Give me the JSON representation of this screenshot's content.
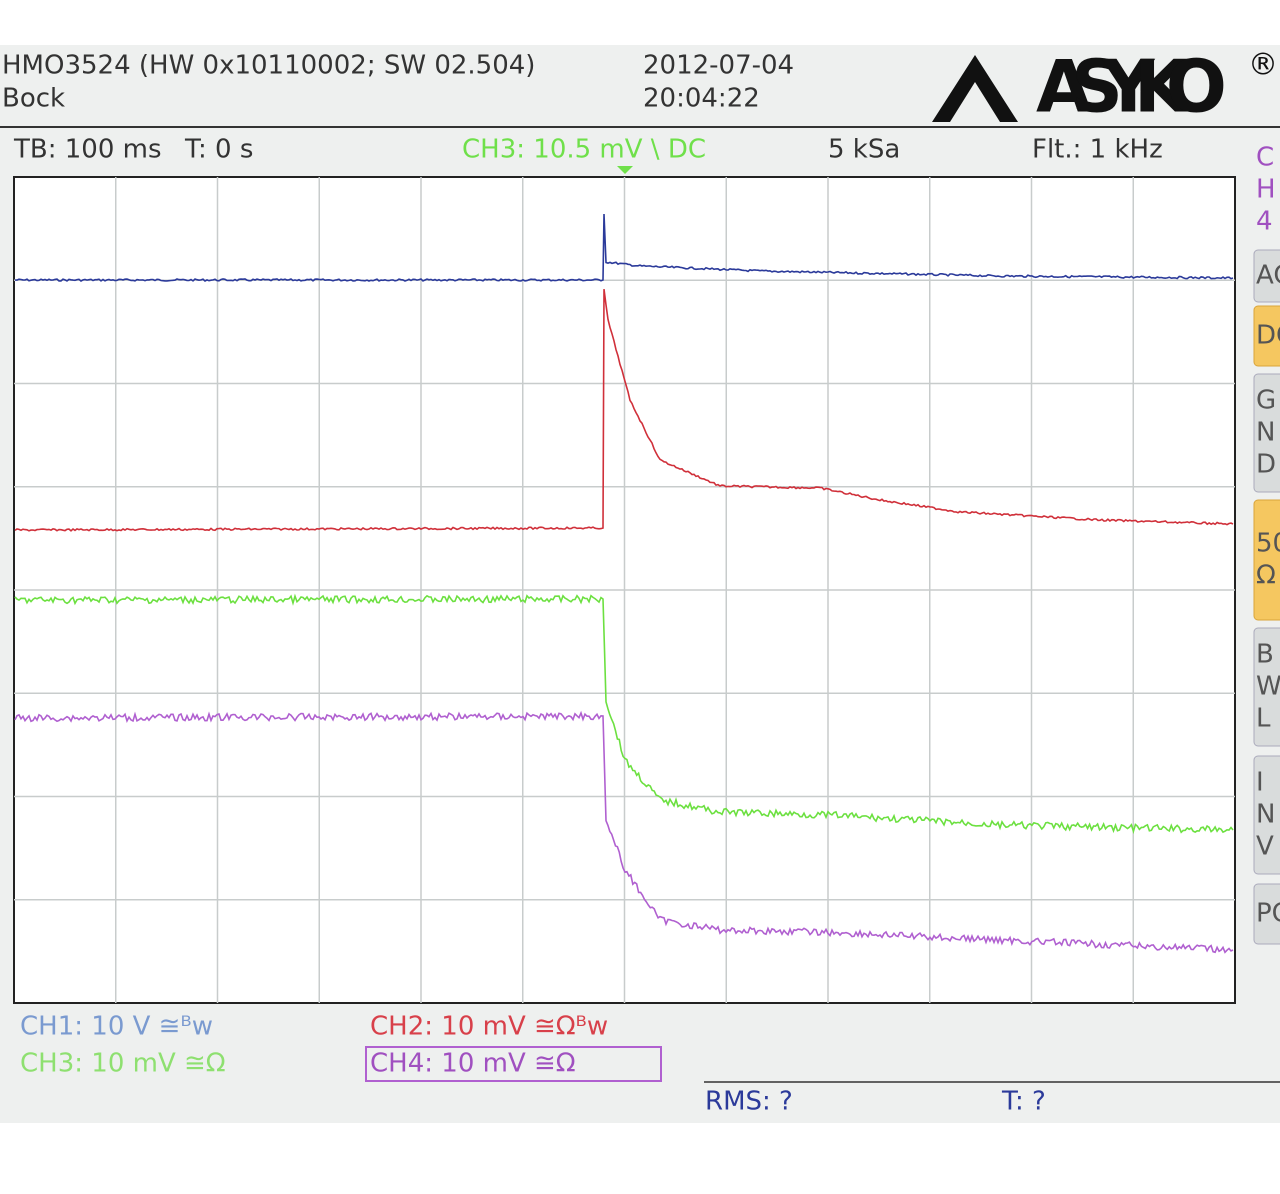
{
  "header": {
    "model": "HMO3524 (HW 0x10110002; SW 02.504)",
    "name": "Bock",
    "date": "2012-07-04",
    "time": "20:04:22",
    "logo": "ASYKO",
    "logo_mark": "®"
  },
  "status": {
    "timebase": "TB: 100 ms",
    "trigger_time": "T: 0 s",
    "trigger_source": "CH3: 10.5 mV \\ DC",
    "sample_rate": "5 kSa",
    "filter": "Flt.: 1 kHz"
  },
  "side_menu": [
    [
      "C",
      "H",
      "4"
    ],
    [
      "AC"
    ],
    [
      "DC"
    ],
    [
      "G",
      "N",
      "D"
    ],
    [
      "50",
      "Ω"
    ],
    [
      "B",
      "W",
      "L"
    ],
    [
      "I",
      "N",
      "V"
    ],
    [
      "PO"
    ]
  ],
  "channels": [
    "CH1: 10 V ≅ᴮw",
    "CH2: 10 mV ≅Ωᴮw",
    "CH3: 10 mV ≅Ω",
    "CH4: 10 mV ≅Ω"
  ],
  "measurements": {
    "rms": "RMS: ?",
    "t": "T: ?"
  }
}
